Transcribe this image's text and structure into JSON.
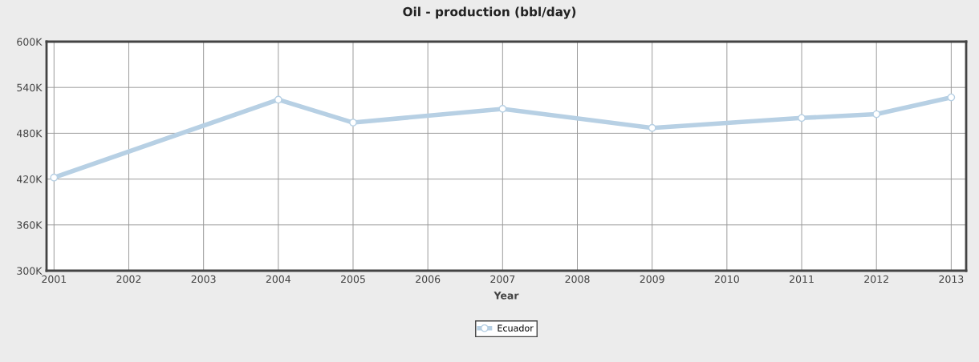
{
  "chart_data": {
    "type": "line",
    "title": "Oil - production (bbl/day)",
    "xlabel": "Year",
    "x": [
      2001,
      2004,
      2005,
      2007,
      2009,
      2011,
      2012,
      2013
    ],
    "series": [
      {
        "name": "Ecuador",
        "color": "#b7d0e4",
        "values": [
          422000,
          524000,
          494000,
          512000,
          487000,
          500000,
          505000,
          527000
        ]
      }
    ],
    "xlim": [
      2000.9,
      2013.2
    ],
    "xticks": [
      2001,
      2002,
      2003,
      2004,
      2005,
      2006,
      2007,
      2008,
      2009,
      2010,
      2011,
      2012,
      2013
    ],
    "ylim": [
      300000,
      600000
    ],
    "yticks": [
      {
        "value": 300000,
        "label": "300K"
      },
      {
        "value": 360000,
        "label": "360K"
      },
      {
        "value": 420000,
        "label": "420K"
      },
      {
        "value": 480000,
        "label": "480K"
      },
      {
        "value": 540000,
        "label": "540K"
      },
      {
        "value": 600000,
        "label": "600K"
      }
    ],
    "grid": true,
    "legend": "bottom",
    "marker": "circle",
    "line_style": "solid"
  }
}
